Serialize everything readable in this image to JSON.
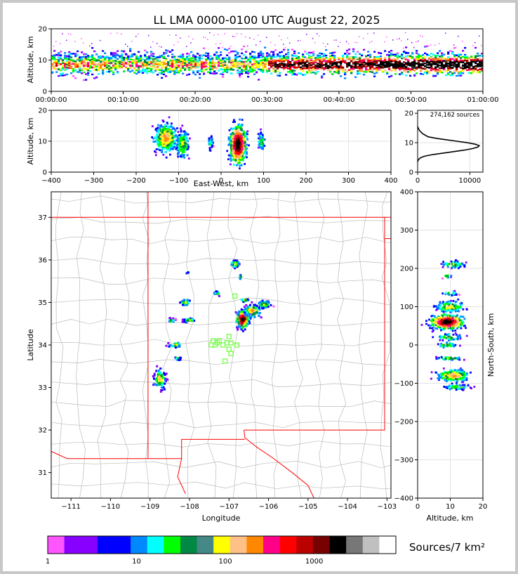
{
  "title": "LL LMA 0000-0100 UTC August 22, 2025",
  "chart_data": [
    {
      "type": "heatmap",
      "ylabel": "Altitude, km",
      "x_ticks": [
        "00:00:00",
        "00:10:00",
        "00:20:00",
        "00:30:00",
        "00:40:00",
        "00:50:00",
        "01:00:00"
      ],
      "y_ticks": [
        "0",
        "10",
        "20"
      ],
      "ylim": [
        0,
        20
      ]
    },
    {
      "type": "heatmap",
      "xlabel": "East-West, km",
      "ylabel": "Altitude, km",
      "x_ticks": [
        "−400",
        "−300",
        "−200",
        "−100",
        "0",
        "100",
        "200",
        "300",
        "400"
      ],
      "y_ticks": [
        "0",
        "10",
        "20"
      ],
      "xlim": [
        -400,
        400
      ],
      "ylim": [
        0,
        20
      ]
    },
    {
      "type": "line",
      "annotation": "274,162 sources",
      "x_ticks": [
        "0",
        "10000"
      ],
      "y_ticks": [
        "0",
        "10",
        "20"
      ],
      "xlim": [
        0,
        12500
      ],
      "ylim": [
        0,
        21
      ],
      "series": [
        {
          "x": [
            0,
            100,
            300,
            700,
            1500,
            3000,
            5000,
            7000,
            9000,
            10500,
            11500,
            11800,
            11000,
            9500,
            7500,
            5500,
            3500,
            2000,
            1000,
            400,
            100,
            0
          ],
          "y": [
            3.5,
            4,
            4.5,
            5,
            5.5,
            6,
            6.5,
            7,
            7.5,
            8,
            8.5,
            9,
            9.5,
            10,
            10.5,
            11,
            11.5,
            12,
            13,
            14,
            15,
            15.5
          ]
        }
      ]
    },
    {
      "type": "heatmap",
      "xlabel": "Longitude",
      "ylabel": "Latitude",
      "x_ticks": [
        "−111",
        "−110",
        "−109",
        "−108",
        "−107",
        "−106",
        "−105",
        "−104",
        "−103"
      ],
      "y_ticks": [
        "31",
        "32",
        "33",
        "34",
        "35",
        "36",
        "37"
      ],
      "xlim": [
        -111.5,
        -102.9
      ],
      "ylim": [
        30.4,
        37.6
      ]
    },
    {
      "type": "heatmap",
      "xlabel": "Altitude, km",
      "ylabel": "North-South, km",
      "x_ticks": [
        "0",
        "10",
        "20"
      ],
      "y_ticks": [
        "−400",
        "−300",
        "−200",
        "−100",
        "0",
        "100",
        "200",
        "300",
        "400"
      ],
      "xlim": [
        0,
        20
      ],
      "ylim": [
        -400,
        400
      ]
    }
  ],
  "colorbar": {
    "label": "Sources/7 km²",
    "tick_labels": [
      "1",
      "10",
      "100",
      "1000"
    ],
    "colors": [
      "#ff55ff",
      "#8800ff",
      "#8800ff",
      "#0000ff",
      "#0000ff",
      "#0088ff",
      "#00ffff",
      "#00ff00",
      "#008844",
      "#448888",
      "#ffff00",
      "#ffc088",
      "#ff8800",
      "#ff0088",
      "#ff0000",
      "#bb0000",
      "#770000",
      "#000000",
      "#777777",
      "#c0c0c0",
      "#ffffff"
    ]
  },
  "palette": {
    "density": [
      "#ff55ff",
      "#8800ff",
      "#0000ff",
      "#0088ff",
      "#00ffff",
      "#00ff00",
      "#008844",
      "#ffff00",
      "#ffc088",
      "#ff8800",
      "#ff0088",
      "#ff0000",
      "#bb0000",
      "#770000",
      "#000000"
    ],
    "state_border": "#ff0000",
    "county_lines": "#bbbbbb",
    "station_marker": "#66ff33"
  }
}
